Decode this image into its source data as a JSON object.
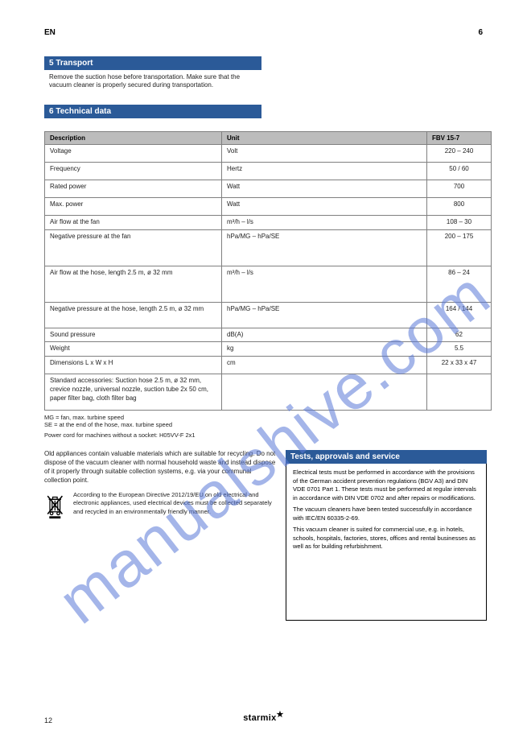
{
  "lang_label": "EN",
  "page_top": "6",
  "section5": {
    "heading": "5 Transport",
    "body": "Remove the suction hose before transportation. Make sure that the vacuum cleaner is properly secured during transportation."
  },
  "section6": {
    "heading": "6 Technical data",
    "sub": "",
    "header_desc": "Description",
    "header_unit": "Unit",
    "header_model": "FBV 15-7"
  },
  "rows": [
    {
      "d": "Voltage",
      "u": "Volt",
      "v": "220 – 240",
      "h": "norm"
    },
    {
      "d": "Frequency",
      "u": "Hertz",
      "v": "50 / 60",
      "h": "norm"
    },
    {
      "d": "Rated power",
      "u": "Watt",
      "v": "700",
      "h": "norm"
    },
    {
      "d": "Max. power",
      "u": "Watt",
      "v": "800",
      "h": "norm"
    },
    {
      "d": "Air flow at the fan",
      "u": "m³/h – l/s",
      "v": "108 – 30",
      "h": "short"
    },
    {
      "d": "Negative pressure at the fan",
      "u": "hPa/MG – hPa/SE",
      "v": "200 – 175",
      "h": "tall"
    },
    {
      "d": "Air flow at the hose, length 2.5 m, ø 32 mm",
      "u": "m³/h – l/s",
      "v": "86 – 24",
      "h": "tall"
    },
    {
      "d": "Negative pressure at the hose, length 2.5 m, ø 32 mm",
      "u": "hPa/MG – hPa/SE",
      "v": "164 / 144",
      "h": "med"
    },
    {
      "d": "Sound pressure",
      "u": "dB(A)",
      "v": "62",
      "h": "short"
    },
    {
      "d": "Weight",
      "u": "kg",
      "v": "5.5",
      "h": "short"
    },
    {
      "d": "Dimensions L x W x H",
      "u": "cm",
      "v": "22 x 33 x 47",
      "h": "norm"
    },
    {
      "d": "Standard accessories: Suction hose 2.5 m, ø 32 mm, crevice nozzle, universal nozzle, suction tube 2x 50 cm, paper filter bag, cloth filter bag",
      "u": "",
      "v": "",
      "h": "tall"
    }
  ],
  "mg_note": "MG = fan, max. turbine speed",
  "se_note": "SE = at the end of the hose, max. turbine speed",
  "cable": "Power cord for machines without a socket: H05VV-F 2x1",
  "left_text": "Old appliances contain valuable materials which are suitable for recycling. Do not dispose of the vacuum cleaner with normal household waste and instead dispose of it properly through suitable collection systems, e.g. via your communal collection point.",
  "weee_text": "According to the European Directive 2012/19/EU on old electrical and electronic appliances, used electrical devices must be collected separately and recycled in an environmentally friendly manner.",
  "test_title": "Tests, approvals and service",
  "test_body": [
    "Electrical tests must be performed in accordance with the provisions of the German accident prevention regulations (BGV A3) and DIN VDE 0701 Part 1. These tests must be performed at regular intervals in accordance with DIN VDE 0702 and after repairs or modifications.",
    "The vacuum cleaners have been tested successfully in accordance with IEC/EN 60335-2-69.",
    "This vacuum cleaner is suited for commercial use, e.g. in hotels, schools, hospitals, factories, stores, offices and rental businesses as well as for building refurbishment."
  ],
  "brand": "starmix",
  "page_bottom": "12",
  "watermark_text": "manualshive.com",
  "colors": {
    "heading_bg": "#2b5a98",
    "header_row_bg": "#bcbcbc",
    "border": "#808080",
    "text": "#222222",
    "watermark": "#5a7ad8"
  }
}
